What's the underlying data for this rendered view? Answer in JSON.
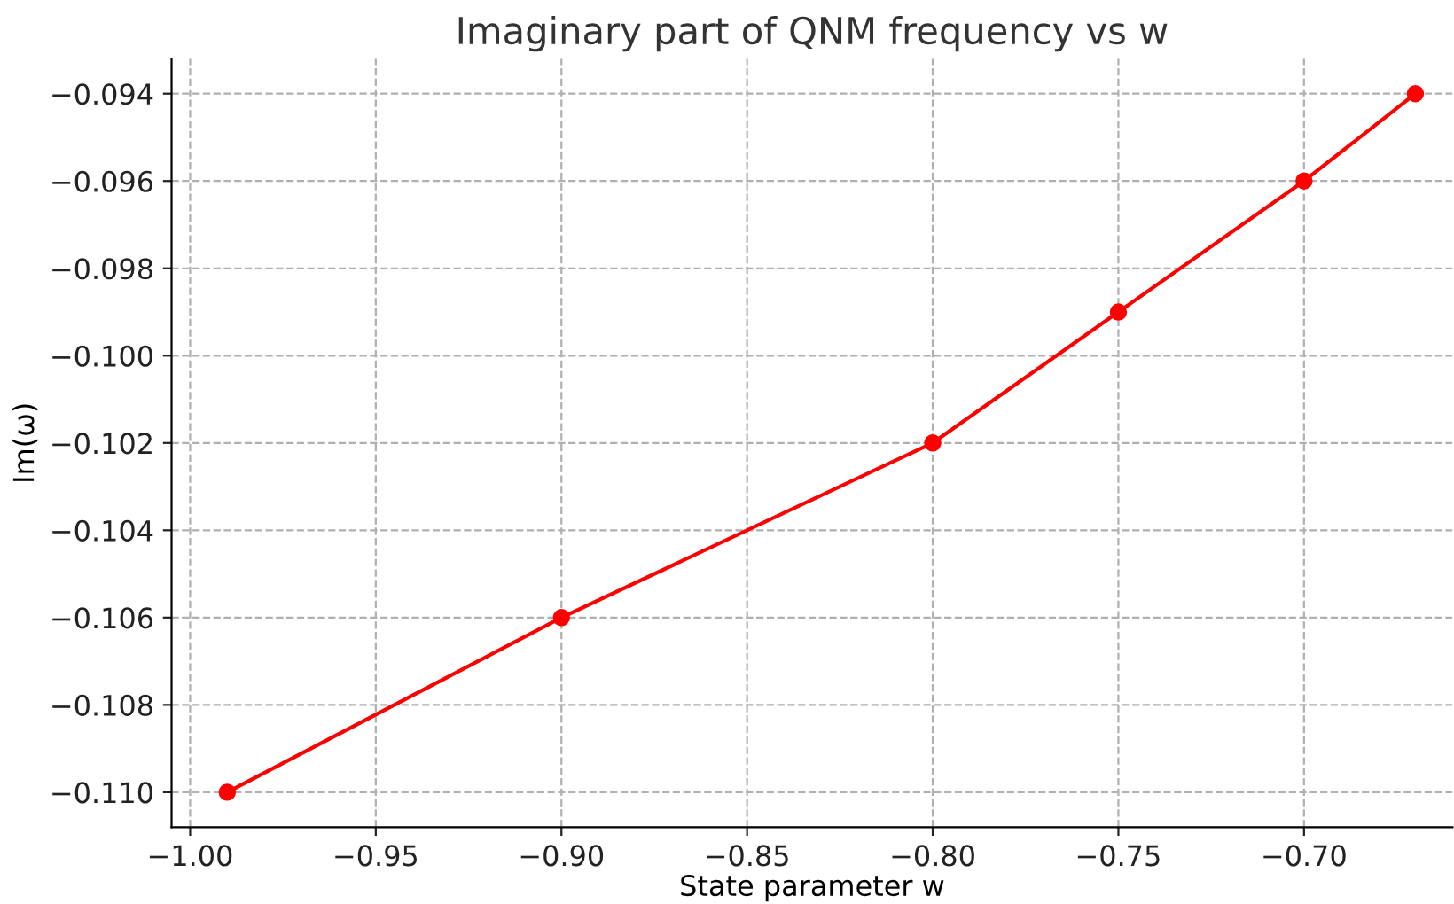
{
  "chart_data": {
    "type": "line",
    "title": "Imaginary part of QNM frequency vs w",
    "xlabel": "State parameter w",
    "ylabel": "Im(ω)",
    "x": [
      -0.99,
      -0.9,
      -0.8,
      -0.75,
      -0.7,
      -0.67
    ],
    "series": [
      {
        "color": "#ff0000",
        "values": [
          -0.11,
          -0.106,
          -0.102,
          -0.099,
          -0.096,
          -0.094
        ]
      }
    ],
    "xlim": [
      -1.005,
      -0.66
    ],
    "xticks": [
      {
        "value": -1.0,
        "label": "−1.00"
      },
      {
        "value": -0.95,
        "label": "−0.95"
      },
      {
        "value": -0.9,
        "label": "−0.90"
      },
      {
        "value": -0.85,
        "label": "−0.85"
      },
      {
        "value": -0.8,
        "label": "−0.80"
      },
      {
        "value": -0.75,
        "label": "−0.75"
      },
      {
        "value": -0.7,
        "label": "−0.70"
      }
    ],
    "ylim": [
      -0.1108,
      -0.0932
    ],
    "yticks": [
      {
        "value": -0.11,
        "label": "−0.110"
      },
      {
        "value": -0.108,
        "label": "−0.108"
      },
      {
        "value": -0.106,
        "label": "−0.106"
      },
      {
        "value": -0.104,
        "label": "−0.104"
      },
      {
        "value": -0.102,
        "label": "−0.102"
      },
      {
        "value": -0.1,
        "label": "−0.100"
      },
      {
        "value": -0.098,
        "label": "−0.098"
      },
      {
        "value": -0.096,
        "label": "−0.096"
      },
      {
        "value": -0.094,
        "label": "−0.094"
      }
    ],
    "grid": true,
    "marker": "circle",
    "line_style": "solid"
  }
}
